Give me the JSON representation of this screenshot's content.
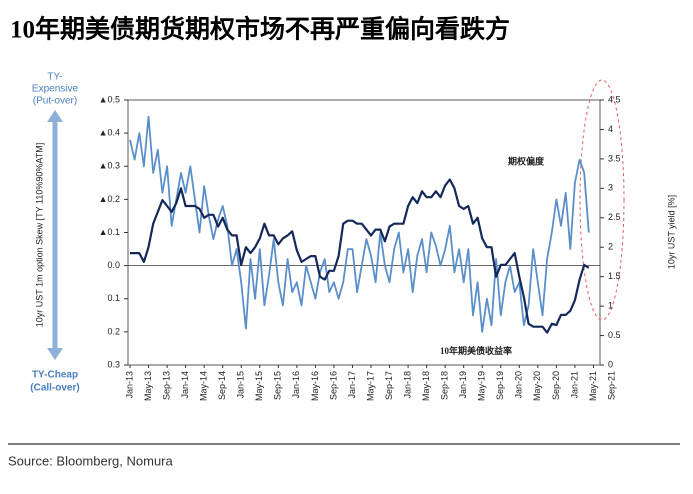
{
  "chart_data": {
    "type": "line",
    "title": "10年期美债期货期权市场不再严重偏向看跌方",
    "source": "Source: Bloomberg, Nomura",
    "top_note": [
      "TY-",
      "Expensive",
      "(Put-over)"
    ],
    "bottom_note": [
      "TY-Cheap",
      "(Call-over)"
    ],
    "ylabel": "10yr UST 1m option Skew [TY 110%90%ATM]",
    "y2label": "10yr UST yield [%]",
    "x": [
      "2013-01",
      "2013-02",
      "2013-03",
      "2013-04",
      "2013-05",
      "2013-06",
      "2013-07",
      "2013-08",
      "2013-09",
      "2013-10",
      "2013-11",
      "2013-12",
      "2014-01",
      "2014-02",
      "2014-03",
      "2014-04",
      "2014-05",
      "2014-06",
      "2014-07",
      "2014-08",
      "2014-09",
      "2014-10",
      "2014-11",
      "2014-12",
      "2015-01",
      "2015-02",
      "2015-03",
      "2015-04",
      "2015-05",
      "2015-06",
      "2015-07",
      "2015-08",
      "2015-09",
      "2015-10",
      "2015-11",
      "2015-12",
      "2016-01",
      "2016-02",
      "2016-03",
      "2016-04",
      "2016-05",
      "2016-06",
      "2016-07",
      "2016-08",
      "2016-09",
      "2016-10",
      "2016-11",
      "2016-12",
      "2017-01",
      "2017-02",
      "2017-03",
      "2017-04",
      "2017-05",
      "2017-06",
      "2017-07",
      "2017-08",
      "2017-09",
      "2017-10",
      "2017-11",
      "2017-12",
      "2018-01",
      "2018-02",
      "2018-03",
      "2018-04",
      "2018-05",
      "2018-06",
      "2018-07",
      "2018-08",
      "2018-09",
      "2018-10",
      "2018-11",
      "2018-12",
      "2019-01",
      "2019-02",
      "2019-03",
      "2019-04",
      "2019-05",
      "2019-06",
      "2019-07",
      "2019-08",
      "2019-09",
      "2019-10",
      "2019-11",
      "2019-12",
      "2020-01",
      "2020-02",
      "2020-03",
      "2020-04",
      "2020-05",
      "2020-06",
      "2020-07",
      "2020-08",
      "2020-09",
      "2020-10",
      "2020-11",
      "2020-12",
      "2021-01",
      "2021-02",
      "2021-03",
      "2021-04"
    ],
    "xlim": [
      "2013-01",
      "2021-09"
    ],
    "xticks": [
      {
        "value": "2013-01",
        "label": "Jan-13"
      },
      {
        "value": "2013-05",
        "label": "May-13"
      },
      {
        "value": "2013-09",
        "label": "Sep-13"
      },
      {
        "value": "2014-01",
        "label": "Jan-14"
      },
      {
        "value": "2014-05",
        "label": "May-14"
      },
      {
        "value": "2014-09",
        "label": "Sep-14"
      },
      {
        "value": "2015-01",
        "label": "Jan-15"
      },
      {
        "value": "2015-05",
        "label": "May-15"
      },
      {
        "value": "2015-09",
        "label": "Sep-15"
      },
      {
        "value": "2016-01",
        "label": "Jan-16"
      },
      {
        "value": "2016-05",
        "label": "May-16"
      },
      {
        "value": "2016-09",
        "label": "Sep-16"
      },
      {
        "value": "2017-01",
        "label": "Jan-17"
      },
      {
        "value": "2017-05",
        "label": "May-17"
      },
      {
        "value": "2017-09",
        "label": "Sep-17"
      },
      {
        "value": "2018-01",
        "label": "Jan-18"
      },
      {
        "value": "2018-05",
        "label": "May-18"
      },
      {
        "value": "2018-09",
        "label": "Sep-18"
      },
      {
        "value": "2019-01",
        "label": "Jan-19"
      },
      {
        "value": "2019-05",
        "label": "May-19"
      },
      {
        "value": "2019-09",
        "label": "Sep-19"
      },
      {
        "value": "2020-01",
        "label": "Jan-20"
      },
      {
        "value": "2020-05",
        "label": "May-20"
      },
      {
        "value": "2020-09",
        "label": "Sep-20"
      },
      {
        "value": "2021-01",
        "label": "Jan-21"
      },
      {
        "value": "2021-05",
        "label": "May-21"
      },
      {
        "value": "2021-09",
        "label": "Sep-21"
      }
    ],
    "ylim": [
      -0.3,
      0.5
    ],
    "yticks": [
      {
        "value": 0.5,
        "label": "▲0.5"
      },
      {
        "value": 0.4,
        "label": "▲0.4"
      },
      {
        "value": 0.3,
        "label": "▲0.3"
      },
      {
        "value": 0.2,
        "label": "▲0.2"
      },
      {
        "value": 0.1,
        "label": "▲0.1"
      },
      {
        "value": 0,
        "label": "0.0"
      },
      {
        "value": -0.1,
        "label": "0.1"
      },
      {
        "value": -0.2,
        "label": "0.2"
      },
      {
        "value": -0.3,
        "label": "0.3"
      }
    ],
    "y2lim": [
      0,
      4.5
    ],
    "y2ticks": [
      0,
      0.5,
      1,
      1.5,
      2,
      2.5,
      3,
      3.5,
      4,
      4.5
    ],
    "grid": false,
    "series": [
      {
        "name": "期权偏度",
        "color": "#5b8fc9",
        "axis": "y",
        "values": [
          0.38,
          0.32,
          0.4,
          0.3,
          0.45,
          0.28,
          0.35,
          0.22,
          0.3,
          0.12,
          0.2,
          0.28,
          0.22,
          0.3,
          0.2,
          0.1,
          0.24,
          0.15,
          0.08,
          0.14,
          0.18,
          0.12,
          0.0,
          0.05,
          -0.05,
          -0.19,
          0.02,
          -0.1,
          0.05,
          -0.12,
          -0.03,
          0.08,
          -0.05,
          -0.12,
          0.02,
          -0.08,
          -0.05,
          -0.12,
          0.0,
          -0.05,
          -0.1,
          -0.02,
          0.02,
          -0.08,
          -0.05,
          -0.1,
          -0.05,
          0.05,
          0.05,
          -0.08,
          0.0,
          0.08,
          0.03,
          -0.05,
          0.1,
          0.0,
          -0.05,
          0.05,
          0.1,
          -0.02,
          0.05,
          -0.08,
          0.03,
          0.08,
          -0.02,
          0.1,
          0.06,
          0.0,
          0.05,
          0.12,
          -0.02,
          0.05,
          -0.05,
          0.05,
          -0.15,
          -0.05,
          -0.2,
          -0.1,
          -0.18,
          0.02,
          -0.15,
          -0.05,
          0.0,
          -0.08,
          -0.05,
          -0.18,
          -0.12,
          0.05,
          -0.05,
          -0.15,
          0.02,
          0.1,
          0.2,
          0.12,
          0.22,
          0.05,
          0.25,
          0.32,
          0.28,
          0.1
        ]
      },
      {
        "name": "10年期美债收益率",
        "color": "#14285a",
        "axis": "y2",
        "values": [
          1.9,
          1.9,
          1.9,
          1.75,
          2.0,
          2.4,
          2.6,
          2.8,
          2.7,
          2.6,
          2.75,
          3.0,
          2.7,
          2.7,
          2.7,
          2.65,
          2.5,
          2.55,
          2.55,
          2.35,
          2.5,
          2.3,
          2.2,
          2.2,
          1.7,
          2.0,
          1.9,
          2.0,
          2.15,
          2.4,
          2.2,
          2.2,
          2.05,
          2.15,
          2.2,
          2.27,
          1.95,
          1.75,
          1.8,
          1.85,
          1.85,
          1.5,
          1.45,
          1.6,
          1.6,
          1.85,
          2.4,
          2.45,
          2.45,
          2.4,
          2.4,
          2.3,
          2.2,
          2.3,
          2.3,
          2.1,
          2.35,
          2.4,
          2.4,
          2.4,
          2.7,
          2.85,
          2.75,
          2.95,
          2.85,
          2.85,
          2.95,
          2.85,
          3.05,
          3.15,
          3.0,
          2.7,
          2.65,
          2.7,
          2.4,
          2.5,
          2.15,
          2.0,
          2.0,
          1.5,
          1.7,
          1.7,
          1.8,
          1.9,
          1.5,
          1.15,
          0.7,
          0.65,
          0.65,
          0.65,
          0.55,
          0.7,
          0.68,
          0.85,
          0.85,
          0.92,
          1.1,
          1.45,
          1.7,
          1.65
        ]
      }
    ]
  }
}
